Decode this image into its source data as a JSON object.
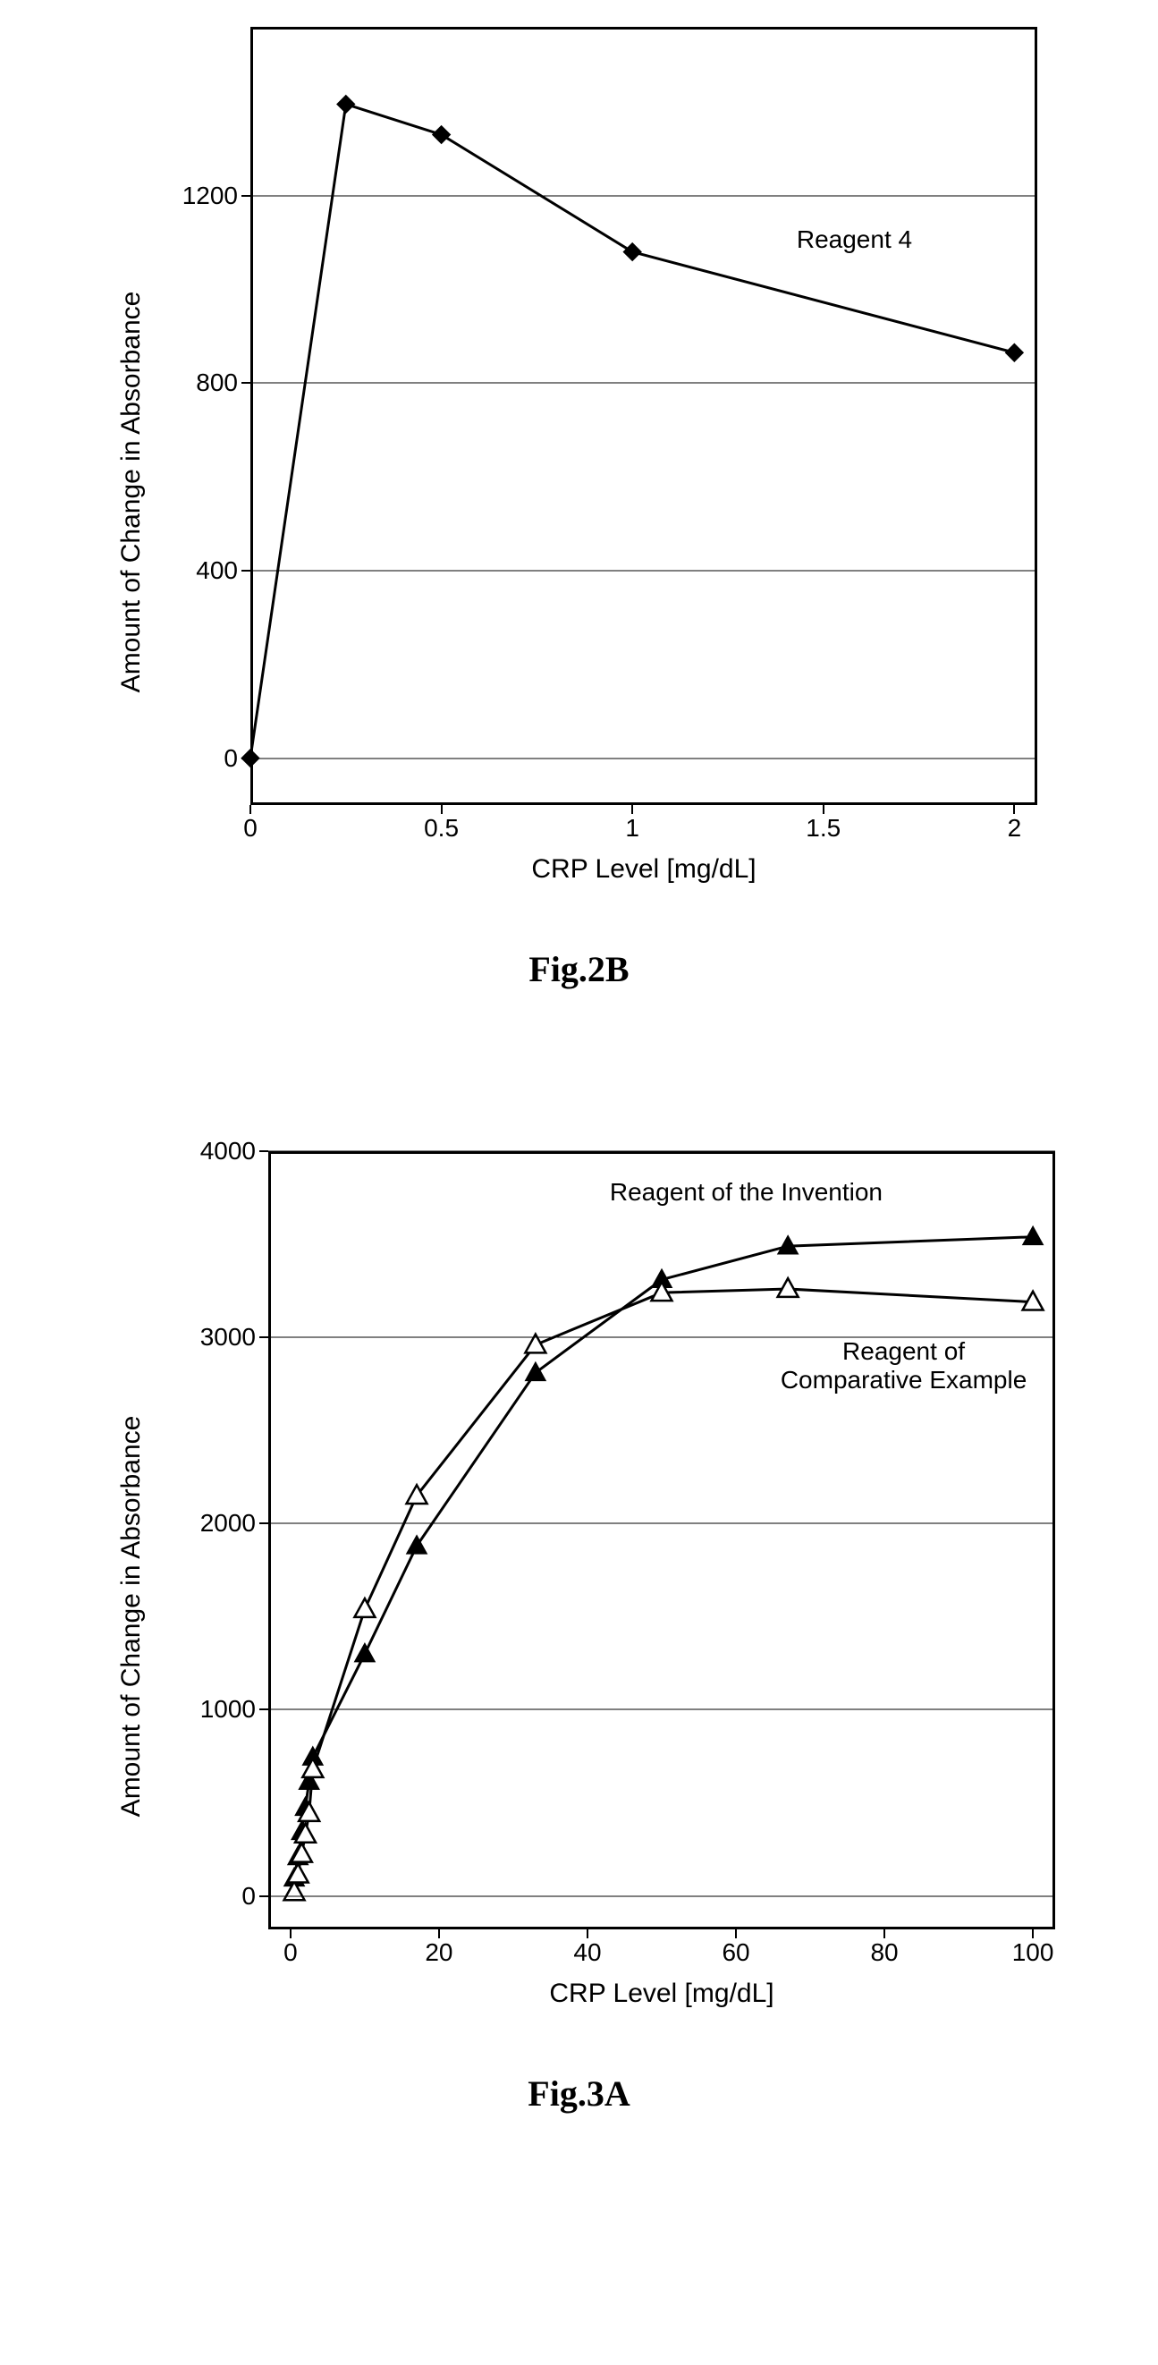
{
  "global": {
    "bg_color": "#ffffff",
    "axis_color": "#000000",
    "font_family_axes": "Arial, Helvetica, sans-serif",
    "font_family_caption": "\"Times New Roman\", Times, serif",
    "caption_fontsize": 40,
    "label_fontsize": 30,
    "tick_fontsize": 28,
    "series_label_fontsize": 28
  },
  "chart2B": {
    "type": "line",
    "caption": "Fig.2B",
    "xlabel": "CRP Level [mg/dL]",
    "ylabel": "Amount of Change in Absorbance",
    "xlim": [
      0,
      2.06
    ],
    "ylim": [
      -100,
      1560
    ],
    "xticks": [
      0,
      0.5,
      1,
      1.5,
      2
    ],
    "xtick_labels": [
      "0",
      "0.5",
      "1",
      "1.5",
      "2"
    ],
    "yticks": [
      0,
      400,
      800,
      1200
    ],
    "ytick_labels": [
      "0",
      "400",
      "800",
      "1200"
    ],
    "grid_y": [
      0,
      400,
      800,
      1200
    ],
    "grid_color": "#000000",
    "border_width": 3,
    "series": [
      {
        "name": "Reagent 4",
        "label": "Reagent 4",
        "label_xy": [
          1.43,
          1105
        ],
        "color": "#000000",
        "line_width": 3,
        "marker": "diamond",
        "marker_size": 20,
        "x": [
          0,
          0.25,
          0.5,
          1,
          2
        ],
        "y": [
          0,
          1395,
          1330,
          1080,
          865
        ]
      }
    ]
  },
  "chart3A": {
    "type": "line",
    "caption": "Fig.3A",
    "xlabel": "CRP Level [mg/dL]",
    "ylabel": "Amount of Change in Absorbance",
    "xlim": [
      -3,
      103
    ],
    "ylim": [
      -180,
      4000
    ],
    "xticks": [
      0,
      20,
      40,
      60,
      80,
      100
    ],
    "xtick_labels": [
      "0",
      "20",
      "40",
      "60",
      "80",
      "100"
    ],
    "yticks": [
      0,
      1000,
      2000,
      3000,
      4000
    ],
    "ytick_labels": [
      "0",
      "1000",
      "2000",
      "3000",
      "4000"
    ],
    "grid_y": [
      0,
      1000,
      2000,
      3000,
      4000
    ],
    "grid_color": "#000000",
    "border_width": 3,
    "series": [
      {
        "name": "Reagent of the Invention",
        "label": "Reagent of the Invention",
        "label_xy": [
          43,
          3780
        ],
        "color": "#000000",
        "line_width": 3,
        "marker": "triangle-filled",
        "marker_size": 22,
        "x": [
          0.5,
          1,
          1.5,
          2,
          2.5,
          3,
          10,
          17,
          33,
          50,
          67,
          100
        ],
        "y": [
          95,
          210,
          345,
          475,
          615,
          745,
          1300,
          1880,
          2810,
          3310,
          3490,
          3540
        ]
      },
      {
        "name": "Reagent of Comparative Example",
        "label_line1": "Reagent of",
        "label_line2": "Comparative Example",
        "label_xy": [
          66,
          3000
        ],
        "color": "#000000",
        "line_width": 3,
        "marker": "triangle-open",
        "marker_size": 22,
        "x": [
          0.5,
          1,
          1.5,
          2,
          2.5,
          3,
          10,
          17,
          33,
          50,
          67,
          100
        ],
        "y": [
          20,
          115,
          225,
          330,
          445,
          680,
          1540,
          2150,
          2960,
          3240,
          3260,
          3190
        ]
      }
    ]
  }
}
